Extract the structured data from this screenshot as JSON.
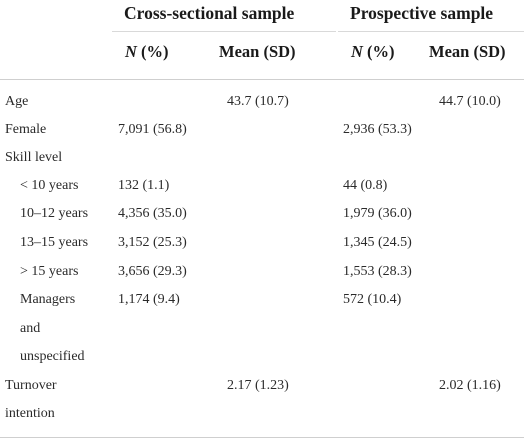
{
  "header": {
    "group1": "Cross-sectional sample",
    "group2": "Prospective sample",
    "n_pct_italic": "N",
    "n_pct_rest": " (%)",
    "mean_sd": "Mean (SD)"
  },
  "rows": [
    {
      "label": "Age",
      "c1": "",
      "c2": "43.7 (10.7)",
      "c3": "",
      "c4": "44.7 (10.0)"
    },
    {
      "label": "Female",
      "c1": "7,091 (56.8)",
      "c2": "",
      "c3": "2,936 (53.3)",
      "c4": ""
    },
    {
      "label": "Skill level",
      "c1": "",
      "c2": "",
      "c3": "",
      "c4": ""
    },
    {
      "label": "< 10 years",
      "c1": "132 (1.1)",
      "c2": "",
      "c3": "44 (0.8)",
      "c4": ""
    },
    {
      "label": "10–12 years",
      "c1": "4,356 (35.0)",
      "c2": "",
      "c3": "1,979 (36.0)",
      "c4": ""
    },
    {
      "label": "13–15 years",
      "c1": "3,152 (25.3)",
      "c2": "",
      "c3": "1,345 (24.5)",
      "c4": ""
    },
    {
      "label": "> 15 years",
      "c1": "3,656 (29.3)",
      "c2": "",
      "c3": "1,553 (28.3)",
      "c4": ""
    },
    {
      "label": "Managers",
      "c1": "1,174 (9.4)",
      "c2": "",
      "c3": "572 (10.4)",
      "c4": ""
    },
    {
      "label": "and",
      "c1": "",
      "c2": "",
      "c3": "",
      "c4": ""
    },
    {
      "label": "unspecified",
      "c1": "",
      "c2": "",
      "c3": "",
      "c4": ""
    },
    {
      "label": "Turnover",
      "c1": "",
      "c2": "2.17 (1.23)",
      "c3": "",
      "c4": "2.02 (1.16)"
    },
    {
      "label": "intention",
      "c1": "",
      "c2": "",
      "c3": "",
      "c4": ""
    }
  ]
}
